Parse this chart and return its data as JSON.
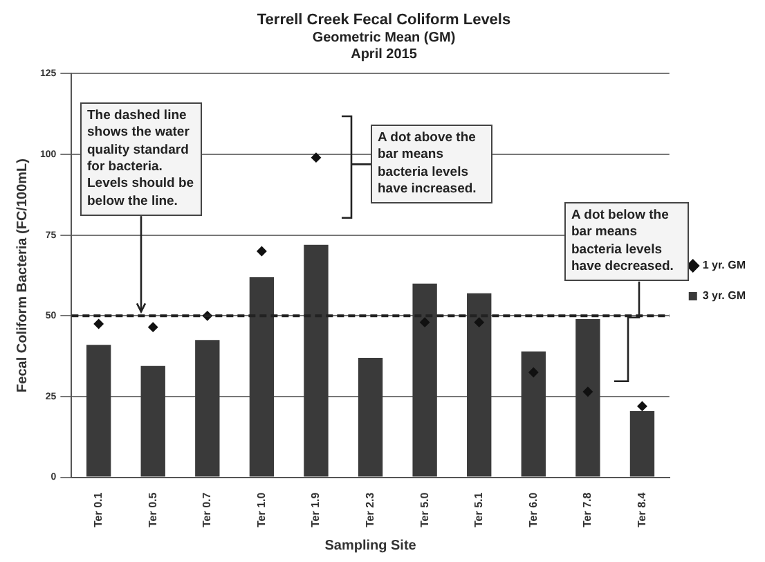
{
  "chart_data": {
    "type": "bar",
    "title": "Terrell Creek Fecal Coliform Levels",
    "subtitle": "Geometric Mean (GM)\nApril 2015",
    "xlabel": "Sampling Site",
    "ylabel": "Fecal Coliform Bacteria (FC/100mL)",
    "categories": [
      "Ter 0.1",
      "Ter 0.5",
      "Ter 0.7",
      "Ter 1.0",
      "Ter 1.9",
      "Ter 2.3",
      "Ter 5.0",
      "Ter 5.1",
      "Ter 6.0",
      "Ter 7.8",
      "Ter 8.4"
    ],
    "series": [
      {
        "name": "3 yr. GM",
        "color": "#3a3a3a",
        "values": [
          41,
          34.5,
          42.5,
          62,
          72,
          37,
          60,
          57,
          39,
          49,
          20.5
        ]
      },
      {
        "name": "1 yr. GM",
        "type": "scatter",
        "color": "#111111",
        "x": [
          "Ter 0.1",
          "Ter 0.5",
          "Ter 0.7",
          "Ter 1.0",
          "Ter 1.9",
          "Ter 2.3",
          "Ter 5.0",
          "Ter 5.1",
          "Ter 6.0",
          "Ter 7.8",
          "Ter 8.4"
        ],
        "values": [
          47.5,
          46.5,
          50,
          70,
          99,
          null,
          48,
          48,
          32.5,
          26.5,
          22
        ]
      }
    ],
    "ylim": [
      0,
      125
    ],
    "yticks": [
      0,
      25,
      50,
      75,
      100,
      125
    ],
    "grid": "y",
    "legend": "right",
    "marker": "diamond",
    "ref_lines": [
      {
        "axis": "y",
        "value": 50,
        "line_style": "dashed",
        "color": "#222222"
      }
    ],
    "annotations": [
      {
        "text": "The dashed line shows the water quality standard for bacteria. Levels should be below the line.",
        "y": 50
      },
      "A dot above the bar means bacteria levels have increased.",
      "A dot below the bar means bacteria levels have decreased."
    ]
  }
}
